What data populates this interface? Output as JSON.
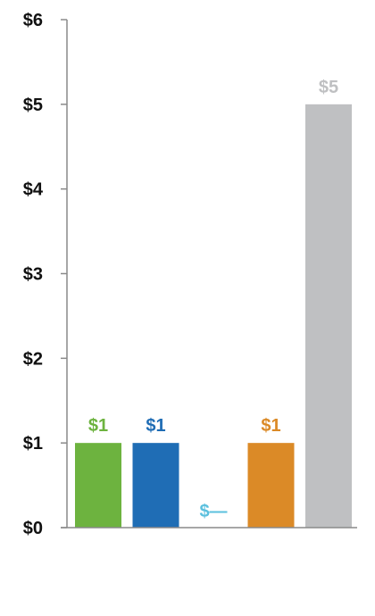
{
  "chart_data": {
    "type": "bar",
    "title": "",
    "xlabel": "",
    "ylabel": "",
    "ylim": [
      0,
      6
    ],
    "yticks": [
      0,
      1,
      2,
      3,
      4,
      5,
      6
    ],
    "ytick_labels": [
      "$0",
      "$1",
      "$2",
      "$3",
      "$4",
      "$5",
      "$6"
    ],
    "grid": false,
    "legend": "none",
    "bars": [
      {
        "value": 1,
        "label": "$1",
        "color": "#6db33f"
      },
      {
        "value": 1,
        "label": "$1",
        "color": "#1f6db5"
      },
      {
        "value": 0,
        "label": "$—",
        "color": "#5bc0de"
      },
      {
        "value": 1,
        "label": "$1",
        "color": "#db8a27"
      },
      {
        "value": 5,
        "label": "$5",
        "color": "#bfc0c2"
      }
    ]
  }
}
